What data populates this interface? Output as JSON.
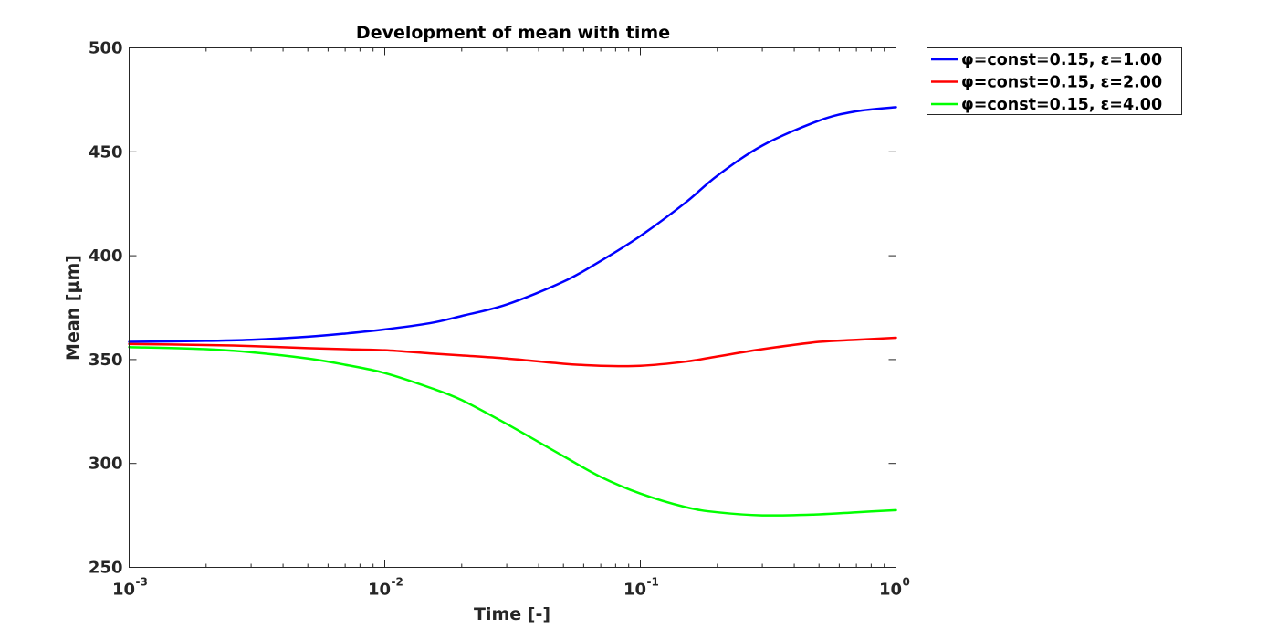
{
  "chart_data": {
    "type": "line",
    "title": "Development of mean with time",
    "xlabel": "Time [-]",
    "ylabel": "Mean [µm]",
    "xscale": "log",
    "xlim": [
      0.001,
      1
    ],
    "ylim": [
      250,
      500
    ],
    "xticks": [
      {
        "value": 0.001,
        "base": "10",
        "exp": "-3"
      },
      {
        "value": 0.01,
        "base": "10",
        "exp": "-2"
      },
      {
        "value": 0.1,
        "base": "10",
        "exp": "-1"
      },
      {
        "value": 1,
        "base": "10",
        "exp": "0"
      }
    ],
    "yticks": [
      "250",
      "300",
      "350",
      "400",
      "450",
      "500"
    ],
    "grid": false,
    "legend_position": "outside top-right",
    "series": [
      {
        "name": "φ=const=0.15, ε=1.00",
        "color": "#0000ff",
        "x": [
          0.001,
          0.002,
          0.003,
          0.005,
          0.007,
          0.01,
          0.015,
          0.02,
          0.03,
          0.05,
          0.07,
          0.1,
          0.15,
          0.2,
          0.3,
          0.5,
          0.7,
          1.0
        ],
        "y": [
          358.5,
          359.0,
          359.5,
          361.0,
          362.5,
          364.5,
          367.5,
          371.0,
          376.5,
          387.5,
          397.5,
          409.5,
          425.5,
          438.5,
          453.0,
          465.0,
          469.5,
          471.5
        ]
      },
      {
        "name": "φ=const=0.15, ε=2.00",
        "color": "#ff0000",
        "x": [
          0.001,
          0.002,
          0.003,
          0.005,
          0.007,
          0.01,
          0.015,
          0.02,
          0.03,
          0.05,
          0.07,
          0.1,
          0.15,
          0.2,
          0.3,
          0.5,
          0.7,
          1.0
        ],
        "y": [
          357.5,
          357.0,
          356.5,
          355.5,
          355.0,
          354.5,
          353.0,
          352.0,
          350.5,
          348.0,
          347.0,
          347.0,
          349.0,
          351.5,
          355.0,
          358.5,
          359.5,
          360.5
        ]
      },
      {
        "name": "φ=const=0.15, ε=4.00",
        "color": "#00ff00",
        "x": [
          0.001,
          0.002,
          0.003,
          0.005,
          0.007,
          0.01,
          0.015,
          0.02,
          0.03,
          0.05,
          0.07,
          0.1,
          0.15,
          0.2,
          0.3,
          0.5,
          0.7,
          1.0
        ],
        "y": [
          356.0,
          355.0,
          353.5,
          350.5,
          347.5,
          343.5,
          336.5,
          330.5,
          319.0,
          303.5,
          293.5,
          285.5,
          279.0,
          276.5,
          275.0,
          275.5,
          276.5,
          277.5
        ]
      }
    ]
  }
}
